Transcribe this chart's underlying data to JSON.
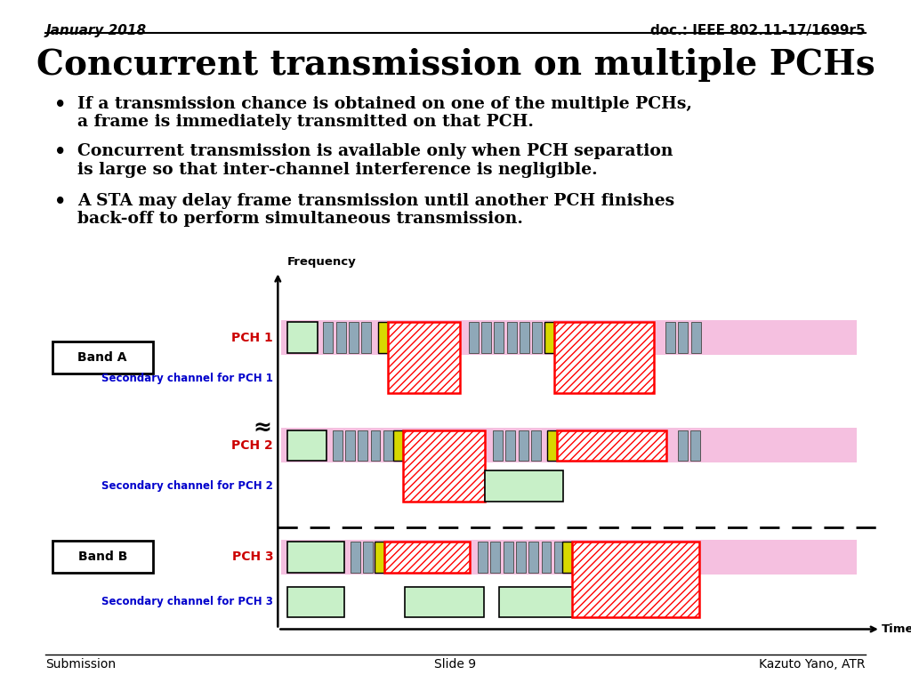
{
  "title": "Concurrent transmission on multiple PCHs",
  "header_left": "January 2018",
  "header_right": "doc.: IEEE 802.11-17/1699r5",
  "footer_left": "Submission",
  "footer_center": "Slide 9",
  "footer_right": "Kazuto Yano, ATR",
  "bullet_points": [
    "If a transmission chance is obtained on one of the multiple PCHs,\na frame is immediately transmitted on that PCH.",
    "Concurrent transmission is available only when PCH separation\nis large so that inter-channel interference is negligible.",
    "A STA may delay frame transmission until another PCH finishes\nback-off to perform simultaneous transmission."
  ],
  "bg_color": "#ffffff",
  "title_color": "#000000",
  "header_color": "#000000",
  "bullet_color": "#000000",
  "pch_label_color": "#cc0000",
  "secondary_label_color": "#0000cc",
  "band_label_color": "#000000",
  "pink_bg": "#f5c0e0",
  "green_light": "#c8f0c8",
  "gray_slot": "#8fa8b8",
  "yellow_slot": "#d8d800",
  "red_hatch": "#ff0000",
  "time_arrow_color": "#000000"
}
